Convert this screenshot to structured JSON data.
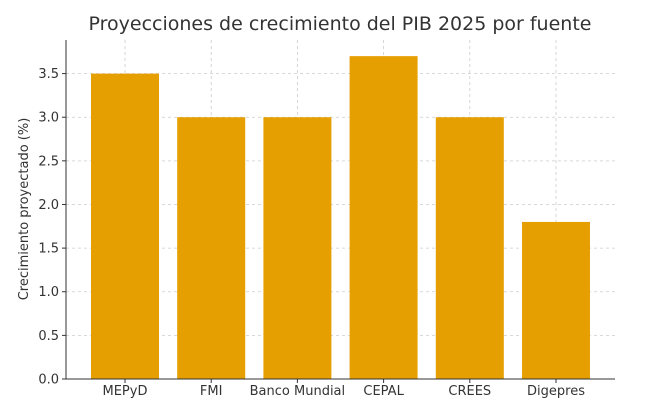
{
  "chart_data": {
    "type": "bar",
    "title": "Proyecciones de crecimiento del PIB 2025 por fuente",
    "xlabel": "",
    "ylabel": "Crecimiento proyectado (%)",
    "categories": [
      "MEPyD",
      "FMI",
      "Banco Mundial",
      "CEPAL",
      "CREES",
      "Digepres"
    ],
    "values": [
      3.5,
      3.0,
      3.0,
      3.7,
      3.0,
      1.8
    ],
    "ylim": [
      0,
      3.885
    ],
    "yticks": [
      "0.0",
      "0.5",
      "1.0",
      "1.5",
      "2.0",
      "2.5",
      "3.0",
      "3.5"
    ],
    "grid": true,
    "bar_color": "#E69F00"
  }
}
